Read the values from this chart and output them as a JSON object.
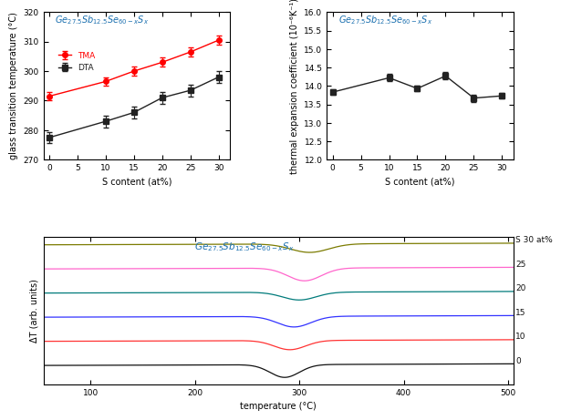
{
  "top_left": {
    "x": [
      0,
      10,
      15,
      20,
      25,
      30
    ],
    "tma_y": [
      291.5,
      296.5,
      300.0,
      303.0,
      306.5,
      310.5
    ],
    "tma_yerr": [
      1.5,
      1.5,
      1.5,
      1.5,
      1.5,
      1.5
    ],
    "dta_y": [
      277.5,
      283.0,
      286.0,
      291.0,
      293.5,
      298.0
    ],
    "dta_yerr": [
      2.0,
      2.0,
      2.0,
      2.0,
      2.0,
      2.0
    ],
    "xlim": [
      -1,
      32
    ],
    "xticks": [
      0,
      5,
      10,
      15,
      20,
      25,
      30
    ],
    "ylim": [
      270,
      320
    ],
    "yticks": [
      270,
      280,
      290,
      300,
      310,
      320
    ],
    "xlabel": "S content (at%)",
    "ylabel": "glass transition temperature (°C)",
    "tma_color": "#ff0000",
    "dta_color": "#222222",
    "legend_tma": "TMA",
    "legend_dta": "DTA"
  },
  "top_right": {
    "x": [
      0,
      10,
      15,
      20,
      25,
      30
    ],
    "y": [
      13.83,
      14.22,
      13.93,
      14.27,
      13.67,
      13.73
    ],
    "yerr": [
      0.08,
      0.1,
      0.07,
      0.1,
      0.1,
      0.08
    ],
    "xlim": [
      -1,
      32
    ],
    "xticks": [
      0,
      5,
      10,
      15,
      20,
      25,
      30
    ],
    "ylim": [
      12.0,
      16.0
    ],
    "yticks": [
      12.0,
      12.5,
      13.0,
      13.5,
      14.0,
      14.5,
      15.0,
      15.5,
      16.0
    ],
    "xlabel": "S content (at%)",
    "ylabel": "thermal expansion coefficient (10⁻⁶K⁻¹)",
    "color": "#222222"
  },
  "bottom": {
    "xlabel": "temperature (°C)",
    "ylabel": "ΔT (arb. units)",
    "xlim": [
      55,
      505
    ],
    "xticks": [
      100,
      200,
      300,
      400,
      500
    ],
    "labels": [
      "S 30 at%",
      "25",
      "20",
      "15",
      "10",
      "0"
    ],
    "colors": [
      "#7b7b00",
      "#ff66cc",
      "#007b7b",
      "#3333ff",
      "#ff3333",
      "#111111"
    ],
    "dip_positions": [
      310,
      305,
      300,
      295,
      291,
      286
    ],
    "offsets": [
      0.85,
      0.68,
      0.51,
      0.34,
      0.17,
      0.0
    ],
    "dip_depths": [
      0.06,
      0.09,
      0.055,
      0.075,
      0.065,
      0.09
    ],
    "dip_widths": [
      18,
      16,
      16,
      16,
      15,
      14
    ],
    "baseline_slopes": [
      3e-05,
      3e-05,
      3e-05,
      3e-05,
      3e-05,
      3e-05
    ]
  }
}
